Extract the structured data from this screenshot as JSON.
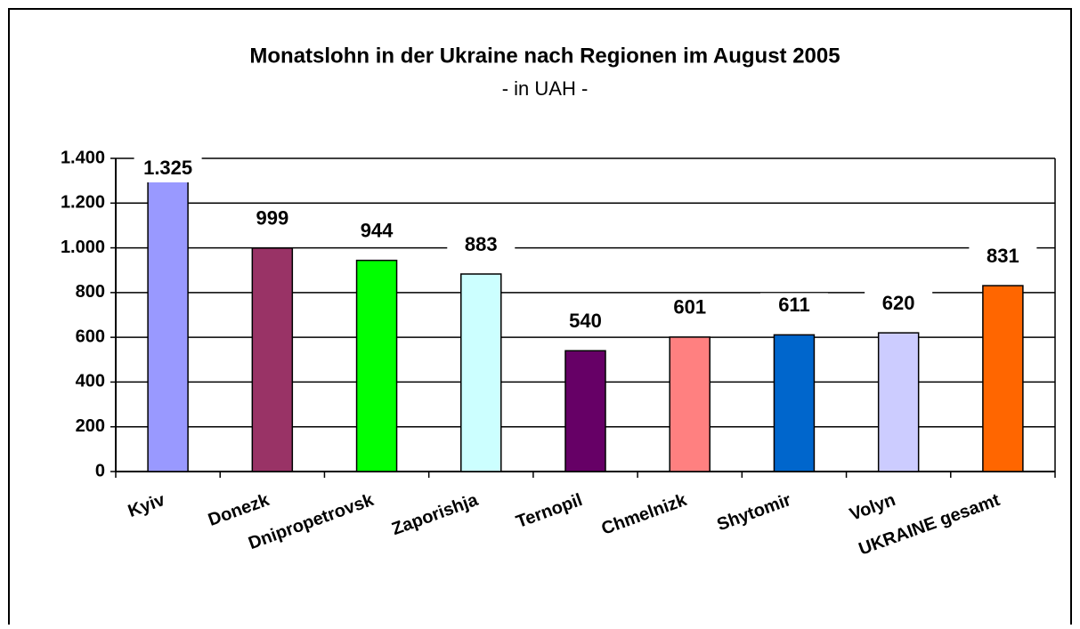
{
  "chart_data": {
    "type": "bar",
    "title": "Monatslohn in der Ukraine nach Regionen im August 2005",
    "subtitle": "- in UAH -",
    "categories": [
      "Kyiv",
      "Donezk",
      "Dnipropetrovsk",
      "Zaporishja",
      "Ternopil",
      "Chmelnizk",
      "Shytomir",
      "Volyn",
      "UKRAINE gesamt"
    ],
    "values": [
      1325,
      999,
      944,
      883,
      540,
      601,
      611,
      620,
      831
    ],
    "value_labels": [
      "1.325",
      "999",
      "944",
      "883",
      "540",
      "601",
      "611",
      "620",
      "831"
    ],
    "colors": [
      "#9999ff",
      "#993366",
      "#00ff00",
      "#ccffff",
      "#660066",
      "#ff8080",
      "#0066cc",
      "#ccccff",
      "#ff6600"
    ],
    "ylim": [
      0,
      1400
    ],
    "yticks": [
      0,
      200,
      400,
      600,
      800,
      {
        "value": 1000,
        "label": "1.000"
      },
      {
        "value": 1200,
        "label": "1.200"
      },
      {
        "value": 1400,
        "label": "1.400"
      }
    ],
    "grid": true
  }
}
